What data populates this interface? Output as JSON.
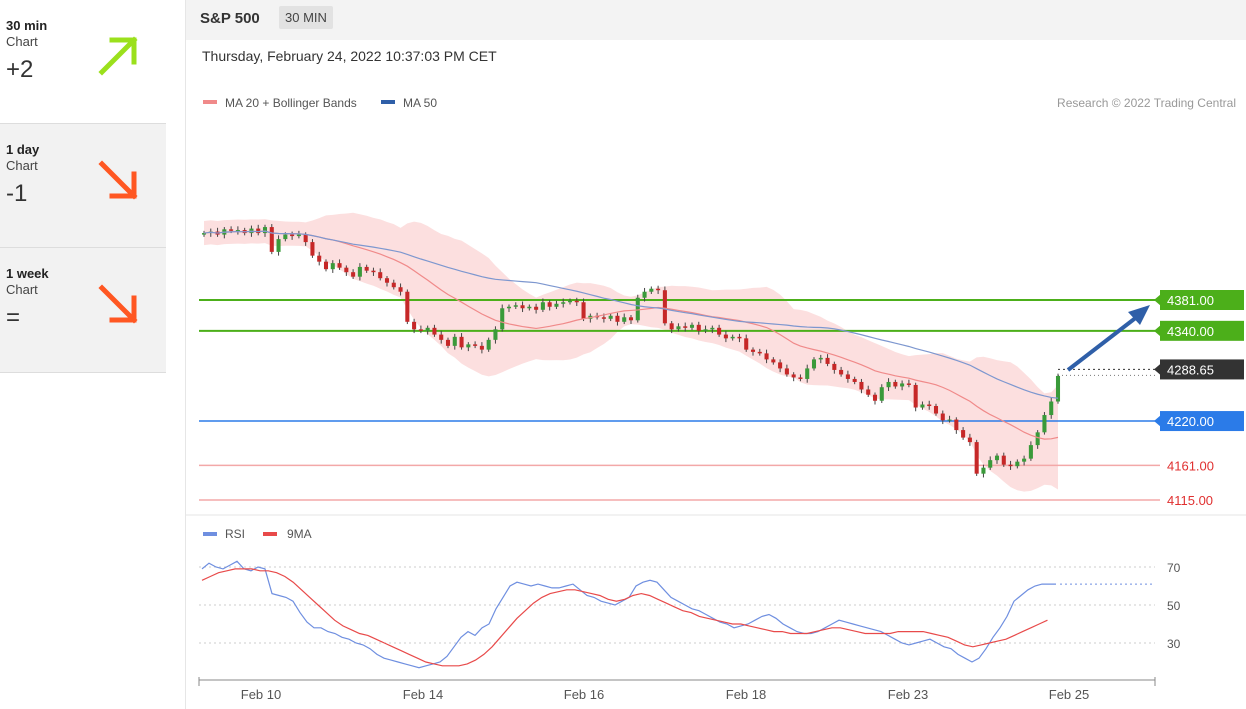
{
  "sidebar": {
    "items": [
      {
        "period": "30 min",
        "label": "Chart",
        "score": "+2",
        "direction": "up",
        "color": "#9be01c"
      },
      {
        "period": "1 day",
        "label": "Chart",
        "score": "-1",
        "direction": "down",
        "color": "#ff5722"
      },
      {
        "period": "1 week",
        "label": "Chart",
        "score": "=",
        "direction": "down",
        "color": "#ff5722"
      }
    ]
  },
  "header": {
    "title": "S&P 500",
    "timeframe": "30 MIN"
  },
  "datetime": "Thursday, February 24, 2022 10:37:03 PM CET",
  "legend": {
    "ma20": "MA 20 + Bollinger Bands",
    "ma50": "MA 50",
    "ma20_color": "#f08a8a",
    "ma50_color": "#2f5fa8"
  },
  "credit": "Research © 2022 Trading Central",
  "chart_data": [
    {
      "type": "candlestick",
      "title": "S&P 500",
      "ylim": [
        4100,
        4480
      ],
      "x_tick_labels": [
        "Feb 10",
        "Feb 14",
        "Feb 16",
        "Feb 18",
        "Feb 23",
        "Feb 25"
      ],
      "closes": [
        4470,
        4472,
        4468,
        4475,
        4473,
        4474,
        4470,
        4476,
        4470,
        4478,
        4445,
        4462,
        4468,
        4466,
        4468,
        4458,
        4440,
        4432,
        4422,
        4430,
        4424,
        4418,
        4412,
        4425,
        4420,
        4418,
        4410,
        4404,
        4398,
        4392,
        4352,
        4342,
        4340,
        4344,
        4335,
        4328,
        4320,
        4332,
        4318,
        4322,
        4320,
        4315,
        4328,
        4342,
        4370,
        4372,
        4374,
        4370,
        4372,
        4368,
        4378,
        4372,
        4376,
        4378,
        4380,
        4378,
        4356,
        4360,
        4358,
        4356,
        4360,
        4352,
        4358,
        4354,
        4384,
        4392,
        4396,
        4394,
        4350,
        4342,
        4346,
        4344,
        4348,
        4340,
        4342,
        4344,
        4335,
        4330,
        4332,
        4330,
        4315,
        4312,
        4310,
        4302,
        4298,
        4290,
        4282,
        4278,
        4276,
        4290,
        4302,
        4304,
        4296,
        4288,
        4282,
        4276,
        4272,
        4262,
        4255,
        4247,
        4265,
        4272,
        4266,
        4270,
        4268,
        4238,
        4242,
        4240,
        4230,
        4221,
        4222,
        4208,
        4198,
        4192,
        4150,
        4158,
        4168,
        4174,
        4162,
        4160,
        4166,
        4170,
        4188,
        4205,
        4228,
        4246,
        4280
      ],
      "levels": [
        {
          "label": "4381.00",
          "value": 4381,
          "color": "#4caf1a"
        },
        {
          "label": "4340.00",
          "value": 4340,
          "color": "#4caf1a"
        },
        {
          "label": "4288.65",
          "value": 4288.65,
          "color": "#333333"
        },
        {
          "label": "4220.00",
          "value": 4220,
          "color": "#2b7be8"
        },
        {
          "label": "4161.00",
          "value": 4161,
          "color": "#f3a8a8"
        },
        {
          "label": "4115.00",
          "value": 4115,
          "color": "#f3a8a8"
        }
      ],
      "series": [
        {
          "name": "MA 20 + Bollinger Bands"
        },
        {
          "name": "MA 50"
        }
      ]
    },
    {
      "type": "line",
      "ylim": [
        10,
        80
      ],
      "y_ticks": [
        "70",
        "50",
        "30"
      ],
      "series": [
        {
          "name": "RSI",
          "color": "#6f8fe0",
          "values": [
            69,
            72,
            70,
            69,
            71,
            73,
            69,
            68,
            70,
            69,
            56,
            55,
            54,
            52,
            46,
            41,
            38,
            38,
            36,
            35,
            33,
            32,
            30,
            29,
            27,
            24,
            22,
            21,
            20,
            19,
            18,
            17,
            18,
            19,
            20,
            23,
            28,
            33,
            36,
            34,
            38,
            40,
            48,
            54,
            60,
            62,
            61,
            60,
            61,
            60,
            59,
            59,
            60,
            61,
            58,
            55,
            54,
            52,
            51,
            50,
            52,
            54,
            60,
            62,
            63,
            62,
            58,
            54,
            52,
            50,
            48,
            47,
            45,
            43,
            41,
            40,
            38,
            39,
            40,
            42,
            44,
            45,
            43,
            40,
            38,
            36,
            35,
            35,
            36,
            38,
            40,
            42,
            41,
            40,
            39,
            38,
            37,
            36,
            34,
            32,
            30,
            29,
            30,
            31,
            32,
            30,
            28,
            27,
            24,
            22,
            20,
            22,
            27,
            33,
            38,
            44,
            52,
            55,
            58,
            60,
            61,
            61,
            61
          ]
        },
        {
          "name": "9MA",
          "color": "#e84a4a",
          "values": [
            63,
            65,
            67,
            68,
            69,
            69,
            69,
            68,
            68,
            67,
            65,
            62,
            58,
            54,
            50,
            46,
            42,
            39,
            37,
            35,
            34,
            32,
            30,
            28,
            26,
            24,
            22,
            20,
            19,
            18,
            18,
            18,
            19,
            21,
            24,
            28,
            33,
            38,
            43,
            47,
            51,
            54,
            56,
            57,
            58,
            58,
            57,
            56,
            55,
            53,
            52,
            53,
            55,
            56,
            55,
            53,
            51,
            49,
            47,
            46,
            44,
            43,
            42,
            41,
            40,
            40,
            39,
            38,
            37,
            36,
            36,
            35,
            35,
            35,
            36,
            37,
            38,
            38,
            37,
            36,
            35,
            35,
            35,
            35,
            36,
            36,
            36,
            36,
            35,
            34,
            33,
            31,
            29,
            28,
            29,
            30,
            31,
            32,
            34,
            36,
            38,
            40,
            42
          ]
        }
      ]
    }
  ]
}
